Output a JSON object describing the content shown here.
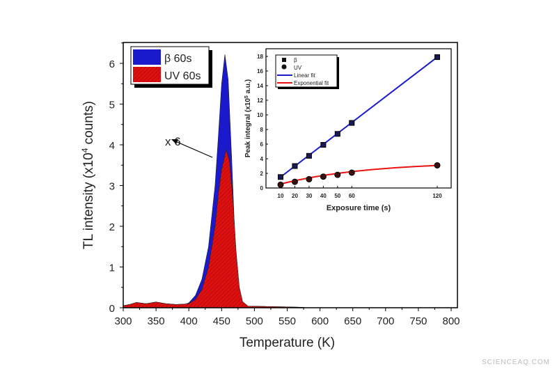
{
  "watermark": "SCIENCEAQ.COM",
  "colors": {
    "beta": "#1a1acc",
    "uv": "#dd1111",
    "linear_fit": "#1a1acc",
    "exp_fit": "#ee1111"
  },
  "chart_data": [
    {
      "type": "area",
      "xlabel": "Temperature (K)",
      "ylabel": "TL intensity (x10⁴ counts)",
      "ylabel_parts": {
        "a": "TL intensity (x10",
        "sup": "4",
        "b": " counts)"
      },
      "xlim": [
        300,
        800
      ],
      "ylim": [
        0,
        6.5
      ],
      "xticks": [
        300,
        350,
        400,
        450,
        500,
        550,
        600,
        650,
        700,
        750,
        800
      ],
      "yticks": [
        0,
        1,
        2,
        3,
        4,
        5,
        6
      ],
      "legend_position": "top-left",
      "annotation": "x 6",
      "series": [
        {
          "name": "β 60s",
          "fill": "solid",
          "x": [
            300,
            310,
            320,
            335,
            350,
            365,
            380,
            395,
            400,
            410,
            420,
            430,
            440,
            445,
            450,
            455,
            460,
            465,
            470,
            475,
            480,
            490,
            520,
            550,
            575
          ],
          "y": [
            0.05,
            0.08,
            0.13,
            0.1,
            0.14,
            0.1,
            0.08,
            0.09,
            0.12,
            0.3,
            0.7,
            1.5,
            3.0,
            4.2,
            5.5,
            6.22,
            5.6,
            3.8,
            1.8,
            0.6,
            0.15,
            0.04,
            0.03,
            0.02,
            0.01
          ]
        },
        {
          "name": "UV 60s",
          "fill": "hatched",
          "x": [
            300,
            310,
            320,
            335,
            350,
            365,
            380,
            395,
            400,
            410,
            420,
            430,
            440,
            445,
            450,
            457,
            462,
            467,
            472,
            477,
            482,
            490,
            520,
            550,
            575
          ],
          "y": [
            0.05,
            0.08,
            0.13,
            0.1,
            0.14,
            0.1,
            0.08,
            0.09,
            0.1,
            0.2,
            0.45,
            1.0,
            2.0,
            2.8,
            3.4,
            3.88,
            3.6,
            2.7,
            1.4,
            0.5,
            0.15,
            0.04,
            0.03,
            0.02,
            0.01
          ]
        }
      ]
    },
    {
      "type": "scatter",
      "xlabel": "Exposure time (s)",
      "ylabel": "Peak integral (x10⁵ a.u.)",
      "ylabel_parts": {
        "a": "Peak integral (x10",
        "sup": "5",
        "b": " a.u.)"
      },
      "xlim": [
        0,
        125
      ],
      "ylim": [
        0,
        19
      ],
      "xticks": [
        10,
        20,
        30,
        40,
        50,
        60,
        120
      ],
      "yticks": [
        0,
        2,
        4,
        6,
        8,
        10,
        12,
        14,
        16,
        18
      ],
      "legend_position": "top-left",
      "series": [
        {
          "name": "β",
          "marker": "square",
          "x": [
            10,
            20,
            30,
            40,
            50,
            60,
            120
          ],
          "y": [
            1.5,
            3.0,
            4.4,
            5.9,
            7.4,
            8.9,
            17.9
          ]
        },
        {
          "name": "UV",
          "marker": "circle",
          "x": [
            10,
            20,
            30,
            40,
            50,
            60,
            120
          ],
          "y": [
            0.45,
            0.85,
            1.2,
            1.55,
            1.8,
            2.1,
            3.1
          ]
        },
        {
          "name": "Linear fit",
          "line": true
        },
        {
          "name": "Exponential fit",
          "line": true
        }
      ]
    }
  ]
}
